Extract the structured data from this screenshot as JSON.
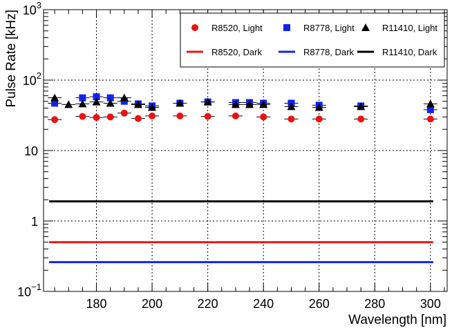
{
  "chart_data": {
    "type": "scatter",
    "title": "",
    "xlabel": "Wavelength [nm]",
    "ylabel": "Pulse Rate [kHz]",
    "xlim": [
      161,
      306
    ],
    "ylim": [
      0.1,
      1000
    ],
    "yscale": "log",
    "grid": true,
    "legend_position": "top-right",
    "x_ticks": [
      180,
      200,
      220,
      240,
      260,
      280,
      300
    ],
    "x_tick_labels": [
      "180",
      "200",
      "220",
      "240",
      "260",
      "280",
      "300"
    ],
    "y_ticks": [
      {
        "value": 0.1,
        "base": "10",
        "exp": "−1"
      },
      {
        "value": 1,
        "base": "1",
        "exp": ""
      },
      {
        "value": 10,
        "base": "10",
        "exp": ""
      },
      {
        "value": 100,
        "base": "10",
        "exp": "2"
      },
      {
        "value": 1000,
        "base": "10",
        "exp": "3"
      }
    ],
    "series": [
      {
        "name": "R8520, Light",
        "kind": "points",
        "marker": "circle",
        "color": "#ee1111",
        "x": [
          165,
          175,
          180,
          185,
          190,
          195,
          200,
          210,
          220,
          230,
          240,
          250,
          260,
          275,
          300
        ],
        "y": [
          27.5,
          30.5,
          29.5,
          30,
          34,
          28.5,
          31,
          31,
          30.5,
          31,
          30,
          28,
          28,
          28,
          28
        ]
      },
      {
        "name": "R8778, Light",
        "kind": "points",
        "marker": "square",
        "color": "#1122ee",
        "x": [
          165,
          175,
          180,
          185,
          190,
          195,
          200,
          210,
          220,
          230,
          235,
          240,
          250,
          260,
          275,
          300
        ],
        "y": [
          47,
          56,
          58,
          56,
          50,
          46,
          43,
          47,
          49,
          48,
          48,
          47,
          47,
          44,
          43,
          38
        ]
      },
      {
        "name": "R11410, Light",
        "kind": "points",
        "marker": "triangle",
        "color": "#000000",
        "x": [
          165,
          170,
          175,
          180,
          185,
          190,
          195,
          200,
          210,
          220,
          230,
          235,
          240,
          250,
          260,
          275,
          300
        ],
        "y": [
          56,
          45,
          46,
          49,
          47,
          56,
          45,
          41,
          47,
          49,
          45,
          45,
          45,
          42,
          41,
          42,
          46
        ]
      },
      {
        "name": "R8520, Dark",
        "kind": "line",
        "color": "#ee1111",
        "x": [
          163,
          301
        ],
        "y": [
          0.5,
          0.5
        ]
      },
      {
        "name": "R8778, Dark",
        "kind": "line",
        "color": "#1122ee",
        "x": [
          163,
          301
        ],
        "y": [
          0.26,
          0.26
        ]
      },
      {
        "name": "R11410, Dark",
        "kind": "line",
        "color": "#000000",
        "x": [
          163,
          301
        ],
        "y": [
          1.9,
          1.9
        ]
      }
    ]
  }
}
